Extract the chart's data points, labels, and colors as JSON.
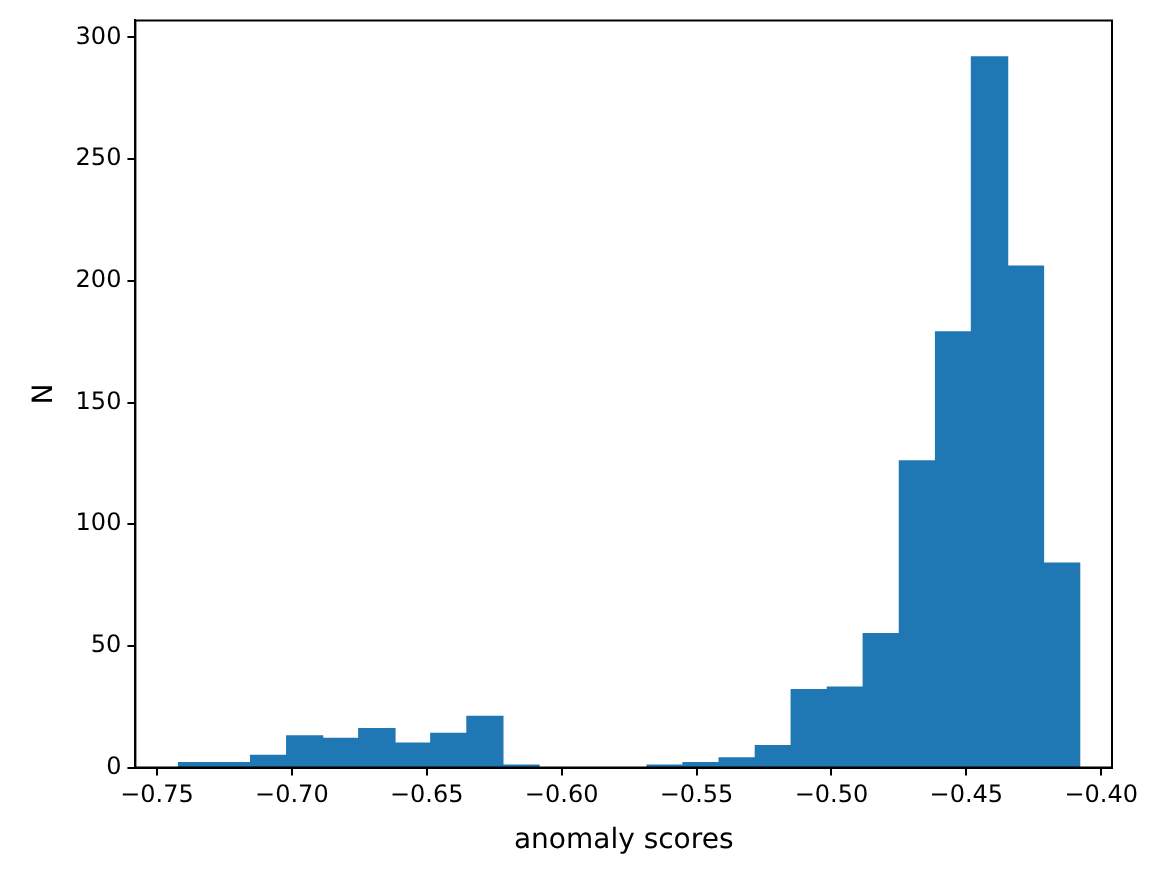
{
  "chart_data": {
    "type": "histogram",
    "xlabel": "anomaly scores",
    "ylabel": "N",
    "color": "#1f77b4",
    "bins": [
      -0.742,
      -0.7286,
      -0.7153,
      -0.7019,
      -0.6886,
      -0.6752,
      -0.6618,
      -0.6485,
      -0.6351,
      -0.6218,
      -0.6084,
      -0.595,
      -0.5817,
      -0.5683,
      -0.555,
      -0.5416,
      -0.5282,
      -0.5149,
      -0.5015,
      -0.4882,
      -0.4748,
      -0.4614,
      -0.4481,
      -0.4347,
      -0.4214,
      -0.408
    ],
    "values": [
      2,
      2,
      5,
      13,
      12,
      16,
      10,
      14,
      21,
      1,
      0,
      0,
      0,
      1,
      2,
      4,
      9,
      32,
      33,
      55,
      126,
      179,
      292,
      206,
      84
    ],
    "xlim": [
      -0.758,
      -0.396
    ],
    "xticks": [
      {
        "value": -0.75,
        "label": "−0.75"
      },
      {
        "value": -0.7,
        "label": "−0.70"
      },
      {
        "value": -0.65,
        "label": "−0.65"
      },
      {
        "value": -0.6,
        "label": "−0.60"
      },
      {
        "value": -0.55,
        "label": "−0.55"
      },
      {
        "value": -0.5,
        "label": "−0.50"
      },
      {
        "value": -0.45,
        "label": "−0.45"
      },
      {
        "value": -0.4,
        "label": "−0.40"
      }
    ],
    "ylim": [
      0,
      307
    ],
    "yticks": [
      0,
      50,
      100,
      150,
      200,
      250,
      300
    ],
    "grid": false,
    "legend": false
  }
}
